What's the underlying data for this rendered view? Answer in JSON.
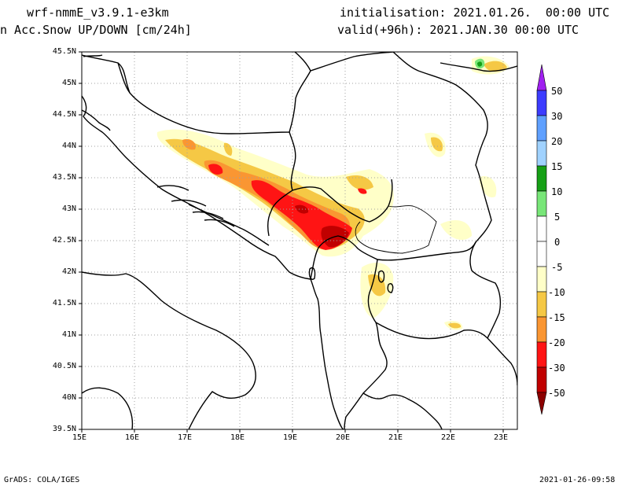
{
  "header": {
    "model": "wrf-nmmE_v3.9.1-e3km",
    "field": "n Acc.Snow UP/DOWN [cm/24h]",
    "init": "initialisation: 2021.01.26.  00:00 UTC",
    "valid": "valid(+96h): 2021.JAN.30 00:00 UTC"
  },
  "footer": {
    "credit": "GrADS: COLA/IGES",
    "timestamp": "2021-01-26-09:58"
  },
  "axes": {
    "lat_labels": [
      "45.5N",
      "45N",
      "44.5N",
      "44N",
      "43.5N",
      "43N",
      "42.5N",
      "42N",
      "41.5N",
      "41N",
      "40.5N",
      "40N",
      "39.5N"
    ],
    "lon_labels": [
      "15E",
      "16E",
      "17E",
      "18E",
      "19E",
      "20E",
      "21E",
      "22E",
      "23E"
    ]
  },
  "legend": {
    "labels": [
      "50",
      "30",
      "20",
      "15",
      "10",
      "5",
      "0",
      "-5",
      "-10",
      "-15",
      "-20",
      "-30",
      "-50"
    ],
    "colors": [
      "#a020f0",
      "#3c3cff",
      "#5fa0ff",
      "#a0d2ff",
      "#16a016",
      "#78e678",
      "#ffffff",
      "#ffffc8",
      "#f5c845",
      "#fa9632",
      "#ff1414",
      "#c00000",
      "#8c0000"
    ]
  }
}
